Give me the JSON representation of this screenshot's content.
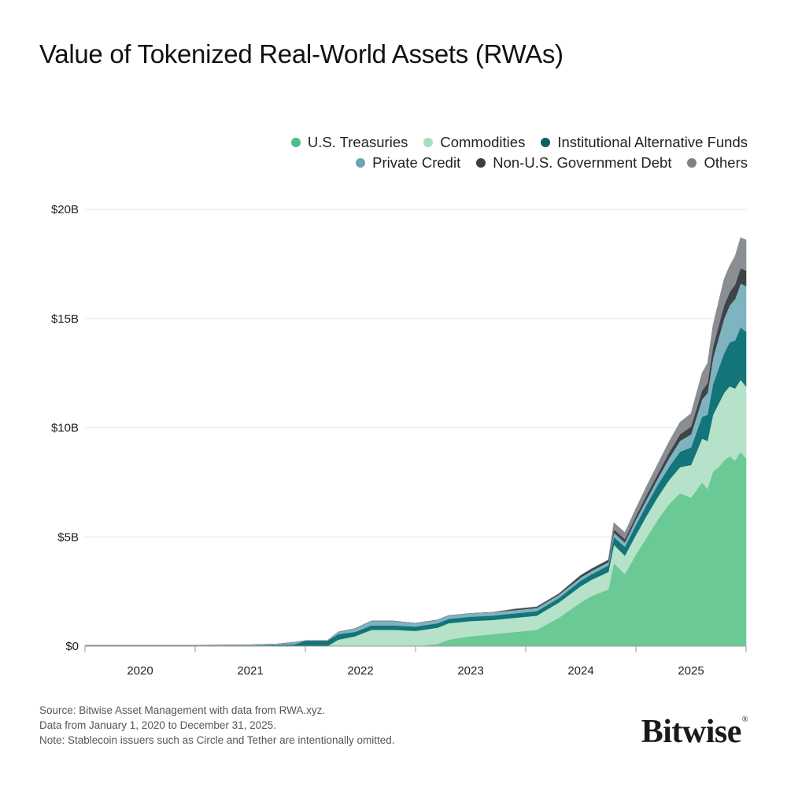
{
  "title": "Value of Tokenized Real-World Assets (RWAs)",
  "legend": {
    "row1": [
      {
        "label": "U.S. Treasuries",
        "color": "#4fbd85"
      },
      {
        "label": "Commodities",
        "color": "#a9dfc0"
      },
      {
        "label": "Institutional Alternative Funds",
        "color": "#0e6064"
      }
    ],
    "row2": [
      {
        "label": "Private Credit",
        "color": "#6aa5b4"
      },
      {
        "label": "Non-U.S. Government Debt",
        "color": "#3a3d42"
      },
      {
        "label": "Others",
        "color": "#7d8287"
      }
    ]
  },
  "chart_data": {
    "type": "area",
    "stacked": true,
    "title": "Value of Tokenized Real-World Assets (RWAs)",
    "xlabel": "",
    "ylabel": "",
    "ylim": [
      0,
      20
    ],
    "y_unit": "$B",
    "y_ticks": [
      "$0",
      "$5B",
      "$10B",
      "$15B",
      "$20B"
    ],
    "y_tick_values": [
      0,
      5,
      10,
      15,
      20
    ],
    "x_ticks": [
      "2020",
      "2021",
      "2022",
      "2023",
      "2024",
      "2025"
    ],
    "x_range": [
      2020.0,
      2026.0
    ],
    "grid": "horizontal",
    "x": [
      2020.0,
      2020.5,
      2021.0,
      2021.5,
      2021.75,
      2021.9,
      2022.0,
      2022.2,
      2022.3,
      2022.45,
      2022.6,
      2022.8,
      2023.0,
      2023.2,
      2023.3,
      2023.5,
      2023.7,
      2023.9,
      2024.0,
      2024.1,
      2024.3,
      2024.5,
      2024.6,
      2024.75,
      2024.8,
      2024.9,
      2025.0,
      2025.1,
      2025.2,
      2025.3,
      2025.4,
      2025.5,
      2025.6,
      2025.65,
      2025.7,
      2025.75,
      2025.8,
      2025.85,
      2025.9,
      2025.95,
      2026.0
    ],
    "series": [
      {
        "name": "U.S. Treasuries",
        "color": "#6ac994",
        "values": [
          0,
          0,
          0,
          0,
          0,
          0,
          0,
          0,
          0,
          0,
          0,
          0,
          0,
          0.1,
          0.3,
          0.45,
          0.55,
          0.65,
          0.7,
          0.75,
          1.3,
          2.0,
          2.3,
          2.6,
          3.8,
          3.3,
          4.2,
          5.0,
          5.8,
          6.5,
          7.0,
          6.8,
          7.5,
          7.2,
          8.0,
          8.2,
          8.5,
          8.7,
          8.5,
          8.9,
          8.6
        ]
      },
      {
        "name": "Commodities",
        "color": "#b5e2c8",
        "values": [
          0,
          0,
          0,
          0,
          0,
          0,
          0,
          0,
          0.3,
          0.45,
          0.75,
          0.75,
          0.7,
          0.75,
          0.75,
          0.7,
          0.65,
          0.65,
          0.65,
          0.65,
          0.7,
          0.75,
          0.75,
          0.8,
          0.85,
          0.85,
          0.9,
          1.0,
          1.05,
          1.1,
          1.2,
          1.5,
          2.0,
          2.2,
          2.6,
          2.9,
          3.1,
          3.2,
          3.3,
          3.3,
          3.3
        ]
      },
      {
        "name": "Institutional Alternative Funds",
        "color": "#137479",
        "values": [
          0.02,
          0.02,
          0.02,
          0.03,
          0.05,
          0.08,
          0.25,
          0.25,
          0.25,
          0.2,
          0.2,
          0.2,
          0.2,
          0.2,
          0.2,
          0.2,
          0.2,
          0.2,
          0.2,
          0.2,
          0.2,
          0.25,
          0.25,
          0.3,
          0.35,
          0.4,
          0.45,
          0.5,
          0.55,
          0.6,
          0.7,
          0.8,
          1.0,
          1.2,
          1.4,
          1.6,
          1.8,
          2.0,
          2.2,
          2.4,
          2.5
        ]
      },
      {
        "name": "Private Credit",
        "color": "#7fb3c0",
        "values": [
          0.02,
          0.02,
          0.02,
          0.03,
          0.05,
          0.1,
          0.0,
          0.0,
          0.1,
          0.15,
          0.2,
          0.2,
          0.15,
          0.15,
          0.15,
          0.15,
          0.15,
          0.15,
          0.15,
          0.15,
          0.15,
          0.15,
          0.15,
          0.15,
          0.2,
          0.2,
          0.25,
          0.25,
          0.3,
          0.4,
          0.5,
          0.6,
          0.8,
          1.0,
          1.2,
          1.4,
          1.6,
          1.7,
          1.9,
          2.0,
          2.1
        ]
      },
      {
        "name": "Non-U.S. Government Debt",
        "color": "#3f4348",
        "values": [
          0,
          0,
          0,
          0,
          0,
          0,
          0,
          0,
          0,
          0,
          0,
          0,
          0,
          0,
          0,
          0,
          0,
          0.05,
          0.05,
          0.05,
          0.05,
          0.1,
          0.1,
          0.1,
          0.15,
          0.15,
          0.15,
          0.2,
          0.2,
          0.25,
          0.3,
          0.35,
          0.4,
          0.45,
          0.5,
          0.55,
          0.6,
          0.6,
          0.65,
          0.7,
          0.7
        ]
      },
      {
        "name": "Others",
        "color": "#8a8e93",
        "values": [
          0,
          0,
          0,
          0,
          0,
          0,
          0,
          0,
          0,
          0,
          0,
          0,
          0,
          0,
          0,
          0,
          0,
          0,
          0,
          0,
          0,
          0,
          0,
          0,
          0.3,
          0.3,
          0.35,
          0.4,
          0.45,
          0.5,
          0.55,
          0.6,
          0.8,
          0.9,
          1.0,
          1.1,
          1.2,
          1.2,
          1.3,
          1.4,
          1.4
        ]
      }
    ]
  },
  "footer": {
    "source": "Source: Bitwise Asset Management with data from RWA.xyz.",
    "range": "Data from January 1, 2020 to December 31, 2025.",
    "note": "Note: Stablecoin issuers such as Circle and Tether are intentionally omitted."
  },
  "brand": {
    "name": "Bitwise",
    "mark": "®"
  }
}
